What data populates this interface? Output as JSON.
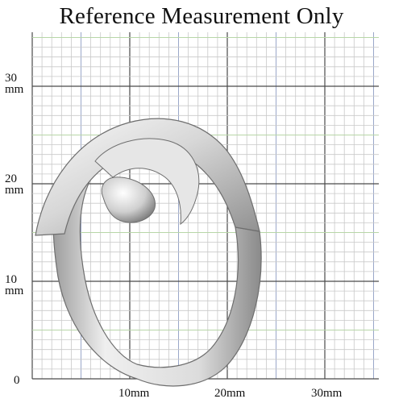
{
  "title": "Reference Measurement Only",
  "axis": {
    "y_labels": [
      {
        "value": "30",
        "unit": "mm"
      },
      {
        "value": "20",
        "unit": "mm"
      },
      {
        "value": "10",
        "unit": "mm"
      },
      {
        "value": "0",
        "unit": ""
      }
    ],
    "x_labels": [
      "10mm",
      "20mm",
      "30mm"
    ]
  },
  "colors": {
    "minor_grid": "#c9c9c9",
    "major_grid": "#4a4a4a",
    "mid_grid_blue": "#9aa7c9",
    "mid_grid_green": "#b8d6a8",
    "ring_metal": "#d9d9d9"
  }
}
